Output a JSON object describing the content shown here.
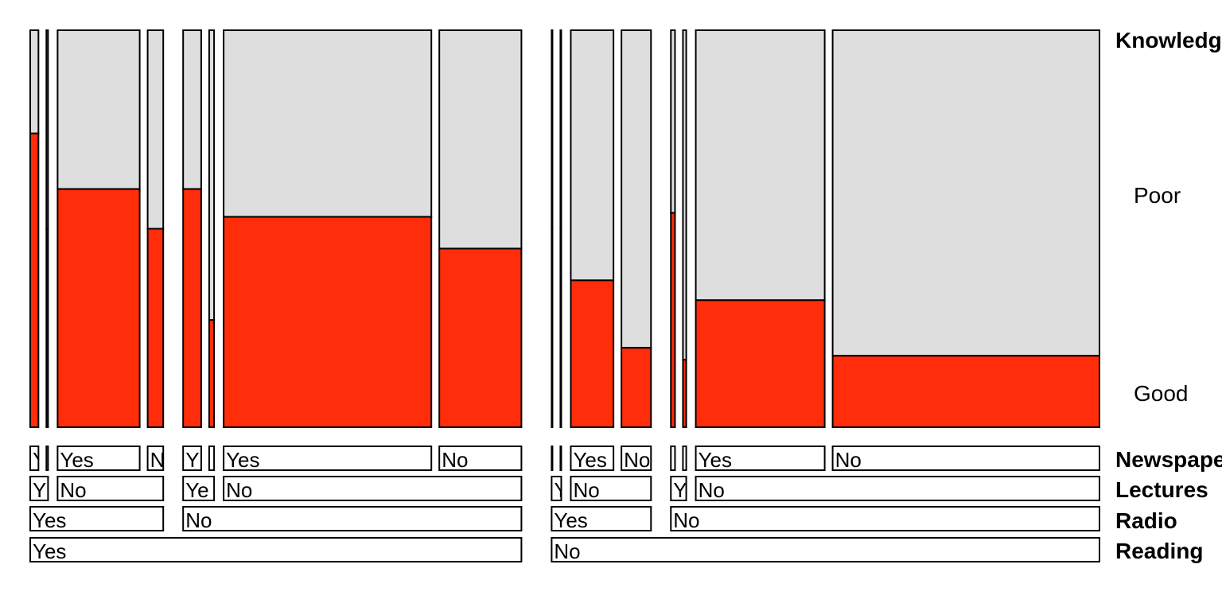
{
  "chart_data": {
    "type": "mosaic",
    "response": {
      "name": "Knowledge",
      "levels": [
        "Good",
        "Poor"
      ],
      "colors": {
        "Good": "#ff2d0a",
        "Poor": "#dedede"
      }
    },
    "strip_variables": [
      "Newspaper",
      "Lectures",
      "Radio",
      "Reading"
    ],
    "order": [
      "Reading",
      "Radio",
      "Lectures",
      "Newspaper"
    ],
    "cells": [
      {
        "Reading": "Yes",
        "Radio": "Yes",
        "Lectures": "Yes",
        "Newspaper": "Yes",
        "count": 10,
        "good_share": 0.74
      },
      {
        "Reading": "Yes",
        "Radio": "Yes",
        "Lectures": "Yes",
        "Newspaper": "No",
        "count": 2,
        "good_share": 0.5
      },
      {
        "Reading": "Yes",
        "Radio": "Yes",
        "Lectures": "No",
        "Newspaper": "Yes",
        "count": 100,
        "good_share": 0.6
      },
      {
        "Reading": "Yes",
        "Radio": "Yes",
        "Lectures": "No",
        "Newspaper": "No",
        "count": 19,
        "good_share": 0.5
      },
      {
        "Reading": "Yes",
        "Radio": "No",
        "Lectures": "Yes",
        "Newspaper": "Yes",
        "count": 22,
        "good_share": 0.6
      },
      {
        "Reading": "Yes",
        "Radio": "No",
        "Lectures": "Yes",
        "Newspaper": "No",
        "count": 6,
        "good_share": 0.27
      },
      {
        "Reading": "Yes",
        "Radio": "No",
        "Lectures": "No",
        "Newspaper": "Yes",
        "count": 253,
        "good_share": 0.53
      },
      {
        "Reading": "Yes",
        "Radio": "No",
        "Lectures": "No",
        "Newspaper": "No",
        "count": 100,
        "good_share": 0.45
      },
      {
        "Reading": "No",
        "Radio": "Yes",
        "Lectures": "Yes",
        "Newspaper": "Yes",
        "count": 1,
        "good_share": 0.5
      },
      {
        "Reading": "No",
        "Radio": "Yes",
        "Lectures": "Yes",
        "Newspaper": "No",
        "count": 1,
        "good_share": 0.5
      },
      {
        "Reading": "No",
        "Radio": "Yes",
        "Lectures": "No",
        "Newspaper": "Yes",
        "count": 52,
        "good_share": 0.37
      },
      {
        "Reading": "No",
        "Radio": "Yes",
        "Lectures": "No",
        "Newspaper": "No",
        "count": 36,
        "good_share": 0.2
      },
      {
        "Reading": "No",
        "Radio": "No",
        "Lectures": "Yes",
        "Newspaper": "Yes",
        "count": 5,
        "good_share": 0.54
      },
      {
        "Reading": "No",
        "Radio": "No",
        "Lectures": "Yes",
        "Newspaper": "No",
        "count": 4,
        "good_share": 0.17
      },
      {
        "Reading": "No",
        "Radio": "No",
        "Lectures": "No",
        "Newspaper": "Yes",
        "count": 157,
        "good_share": 0.32
      },
      {
        "Reading": "No",
        "Radio": "No",
        "Lectures": "No",
        "Newspaper": "No",
        "count": 325,
        "good_share": 0.18
      }
    ],
    "strips": {
      "Reading": [
        {
          "label": "Yes",
          "cells": [
            0,
            7
          ]
        },
        {
          "label": "No",
          "cells": [
            8,
            15
          ]
        }
      ],
      "Radio": [
        {
          "label": "Yes",
          "cells": [
            0,
            3
          ]
        },
        {
          "label": "No",
          "cells": [
            4,
            7
          ]
        },
        {
          "label": "Yes",
          "cells": [
            8,
            11
          ]
        },
        {
          "label": "No",
          "cells": [
            12,
            15
          ]
        }
      ],
      "Lectures": [
        {
          "label": "Y",
          "cells": [
            0,
            1
          ]
        },
        {
          "label": "No",
          "cells": [
            2,
            3
          ]
        },
        {
          "label": "Ye",
          "cells": [
            4,
            5
          ]
        },
        {
          "label": "No",
          "cells": [
            6,
            7
          ]
        },
        {
          "label": "Y",
          "cells": [
            8,
            9
          ]
        },
        {
          "label": "No",
          "cells": [
            10,
            11
          ]
        },
        {
          "label": "Y",
          "cells": [
            12,
            13
          ]
        },
        {
          "label": "No",
          "cells": [
            14,
            15
          ]
        }
      ],
      "Newspaper": [
        {
          "label": "Y",
          "cells": [
            0,
            0
          ]
        },
        {
          "label": "",
          "cells": [
            1,
            1
          ]
        },
        {
          "label": "Yes",
          "cells": [
            2,
            2
          ]
        },
        {
          "label": "N",
          "cells": [
            3,
            3
          ]
        },
        {
          "label": "Y",
          "cells": [
            4,
            4
          ]
        },
        {
          "label": "",
          "cells": [
            5,
            5
          ]
        },
        {
          "label": "Yes",
          "cells": [
            6,
            6
          ]
        },
        {
          "label": "No",
          "cells": [
            7,
            7
          ]
        },
        {
          "label": "",
          "cells": [
            8,
            8
          ]
        },
        {
          "label": "",
          "cells": [
            9,
            9
          ]
        },
        {
          "label": "Yes",
          "cells": [
            10,
            10
          ]
        },
        {
          "label": "No",
          "cells": [
            11,
            11
          ]
        },
        {
          "label": "",
          "cells": [
            12,
            12
          ]
        },
        {
          "label": "",
          "cells": [
            13,
            13
          ]
        },
        {
          "label": "Yes",
          "cells": [
            14,
            14
          ]
        },
        {
          "label": "No",
          "cells": [
            15,
            15
          ]
        }
      ]
    }
  }
}
